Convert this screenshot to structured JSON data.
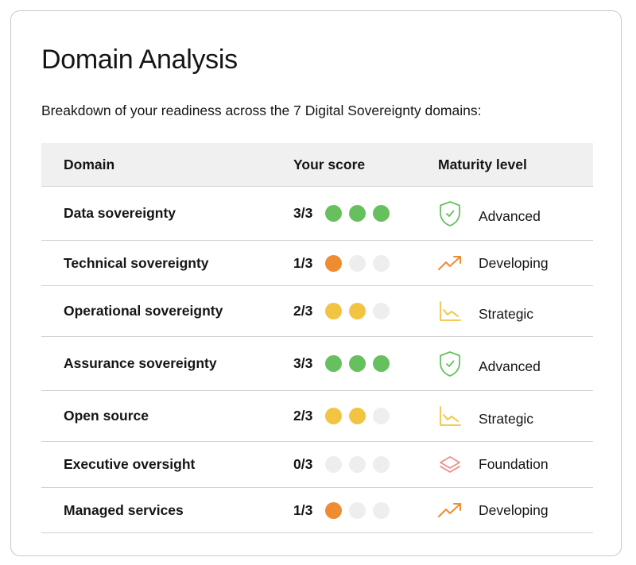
{
  "page": {
    "title": "Domain Analysis",
    "subtitle": "Breakdown of your readiness across the 7 Digital Sovereignty domains:"
  },
  "table": {
    "headers": {
      "domain": "Domain",
      "score": "Your score",
      "maturity": "Maturity level"
    },
    "rows": [
      {
        "domain": "Data sovereignty",
        "score_text": "3/3",
        "score": 3,
        "max": 3,
        "level": "Advanced",
        "icon": "shield-check-icon"
      },
      {
        "domain": "Technical sovereignty",
        "score_text": "1/3",
        "score": 1,
        "max": 3,
        "level": "Developing",
        "icon": "trending-up-icon"
      },
      {
        "domain": "Operational sovereignty",
        "score_text": "2/3",
        "score": 2,
        "max": 3,
        "level": "Strategic",
        "icon": "line-chart-icon"
      },
      {
        "domain": "Assurance sovereignty",
        "score_text": "3/3",
        "score": 3,
        "max": 3,
        "level": "Advanced",
        "icon": "shield-check-icon"
      },
      {
        "domain": "Open source",
        "score_text": "2/3",
        "score": 2,
        "max": 3,
        "level": "Strategic",
        "icon": "line-chart-icon"
      },
      {
        "domain": "Executive oversight",
        "score_text": "0/3",
        "score": 0,
        "max": 3,
        "level": "Foundation",
        "icon": "layers-icon"
      },
      {
        "domain": "Managed services",
        "score_text": "1/3",
        "score": 1,
        "max": 3,
        "level": "Developing",
        "icon": "trending-up-icon"
      }
    ]
  },
  "colors": {
    "advanced": "#66c05e",
    "strategic": "#f2c441",
    "developing": "#ee8c31",
    "foundation": "#ef8f86",
    "empty_dot": "#eeeeee",
    "header_bg": "#f0f0f0"
  }
}
